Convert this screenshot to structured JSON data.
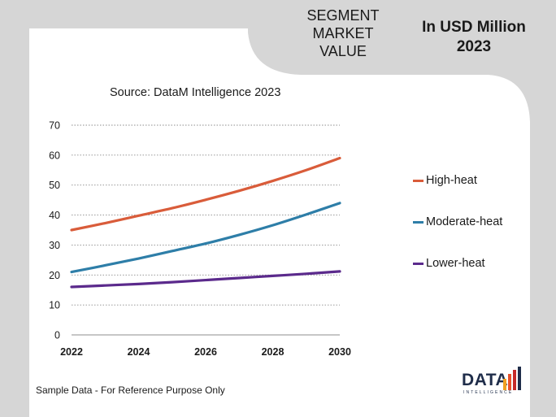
{
  "header": {
    "segment_title_lines": [
      "SEGMENT",
      "MARKET",
      "VALUE"
    ],
    "currency_lines": [
      "In USD Million",
      "2023"
    ]
  },
  "source_note": "Source: DataM Intelligence  2023",
  "footer_note": "Sample Data - For Reference Purpose Only",
  "logo": {
    "word": "DATA",
    "subtitle": "INTELLIGENCE",
    "bar_colors": [
      "#f0a020",
      "#e8512a",
      "#c62a2a",
      "#1f2d4a"
    ]
  },
  "colors": {
    "background": "#d6d6d6",
    "card": "#ffffff",
    "gridline": "#8c8c8c",
    "axis": "#8c8c8c"
  },
  "chart_data": {
    "type": "line",
    "x": [
      2022,
      2023,
      2024,
      2025,
      2026,
      2027,
      2028,
      2029,
      2030
    ],
    "x_ticks": [
      "2022",
      "2024",
      "2026",
      "2028",
      "2030"
    ],
    "y_ticks": [
      "0",
      "10",
      "20",
      "30",
      "40",
      "50",
      "60",
      "70"
    ],
    "ylim": [
      0,
      70
    ],
    "xlim": [
      2022,
      2030
    ],
    "grid": true,
    "grid_style": "dotted horizontal",
    "legend_position": "right",
    "series": [
      {
        "name": "High-heat",
        "color": "#d95c3a",
        "values": [
          35,
          37.3,
          39.8,
          42.3,
          45.1,
          48.1,
          51.4,
          55,
          59
        ]
      },
      {
        "name": "Moderate-heat",
        "color": "#2e7ea8",
        "values": [
          21,
          23.2,
          25.5,
          28,
          30.5,
          33.4,
          36.6,
          40.2,
          44
        ]
      },
      {
        "name": "Lower-heat",
        "color": "#5b2a8c",
        "values": [
          16,
          16.5,
          17,
          17.6,
          18.3,
          19,
          19.7,
          20.4,
          21.2
        ]
      }
    ]
  }
}
